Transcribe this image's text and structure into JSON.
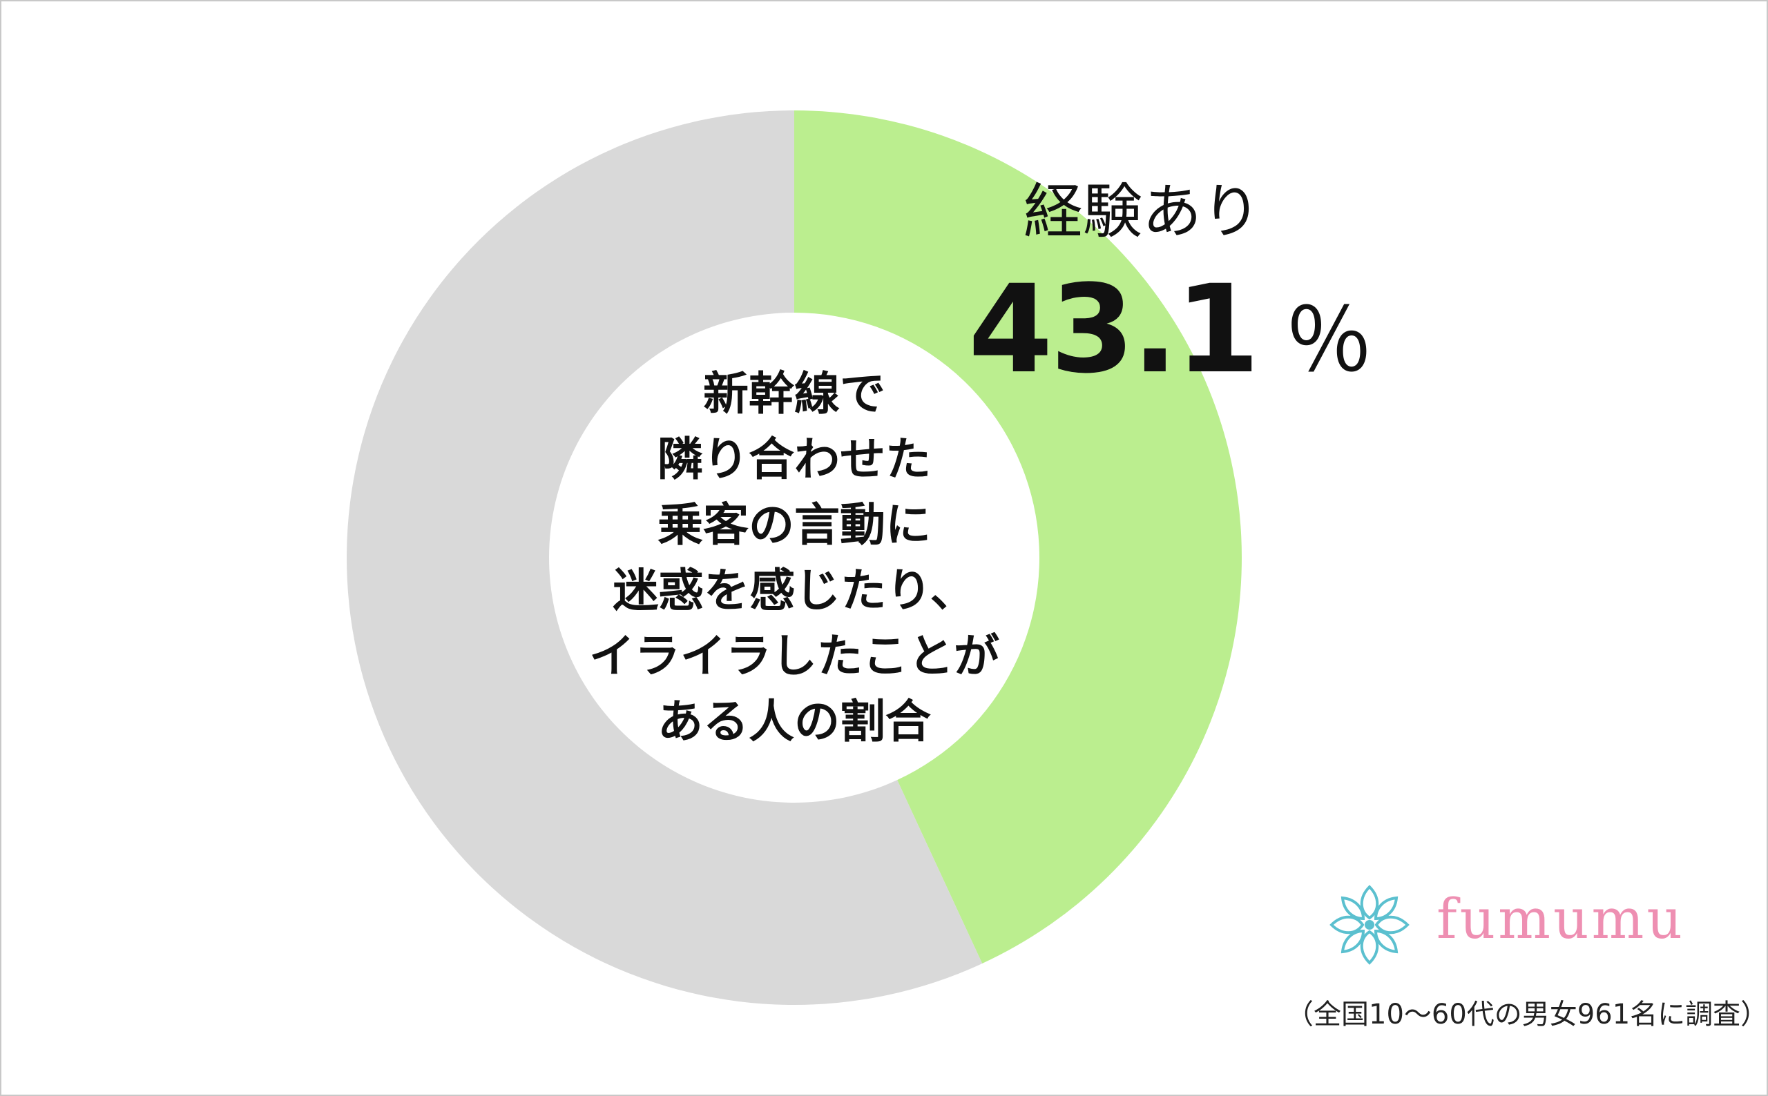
{
  "chart_data": {
    "type": "pie",
    "donut": true,
    "title_lines": [
      "新幹線で",
      "隣り合わせた",
      "乗客の言動に",
      "迷惑を感じたり、",
      "イライラしたことが",
      "ある人の割合"
    ],
    "slices": [
      {
        "label": "経験あり",
        "value": 43.1,
        "color": "#bbee8f",
        "value_text": "43.1",
        "unit": "％"
      },
      {
        "label": "",
        "value": 56.9,
        "color": "#d9d9d9"
      }
    ],
    "start_angle_deg": 0,
    "direction": "clockwise"
  },
  "brand": {
    "name": "fumumu",
    "colors": {
      "text": "#ee8fb2",
      "icon": "#5bc0cf"
    },
    "icon": "flower-icon"
  },
  "footnote": "（全国10～60代の男女961名に調査）"
}
